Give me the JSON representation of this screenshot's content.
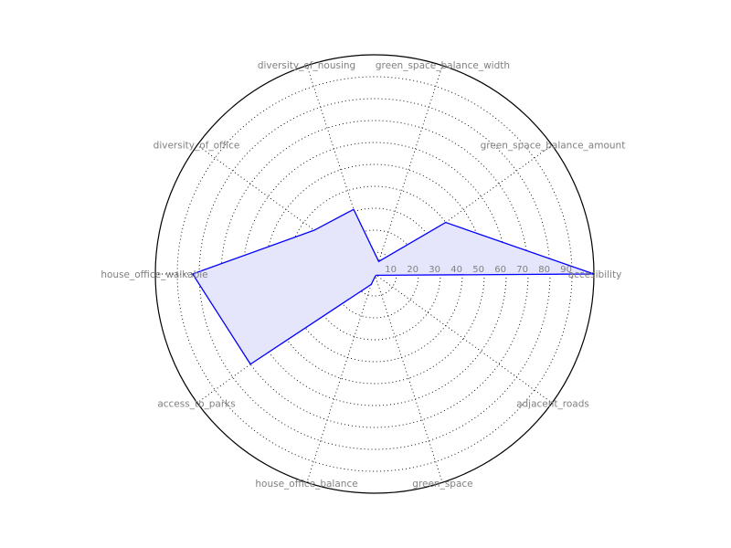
{
  "chart_data": {
    "type": "radar",
    "title": "",
    "categories": [
      "accesibility",
      "green_space_balance_amount",
      "green_space_balance_width",
      "diversity_of_housing",
      "diversity_of_office",
      "house_office_walkable",
      "access_to_parks",
      "house_office_balance",
      "green_space",
      "adjacent_roads"
    ],
    "series": [
      {
        "values": [
          100,
          40,
          6,
          31,
          34,
          83,
          70,
          5,
          1,
          1
        ],
        "line_color": "#0000ff",
        "fill_color": "#e5e5fc"
      }
    ],
    "radial_ticks": [
      10,
      20,
      30,
      40,
      50,
      60,
      70,
      80,
      90
    ],
    "rlim": [
      0,
      100
    ],
    "grid": true,
    "start_angle_deg": 0,
    "direction": "counterclockwise"
  }
}
